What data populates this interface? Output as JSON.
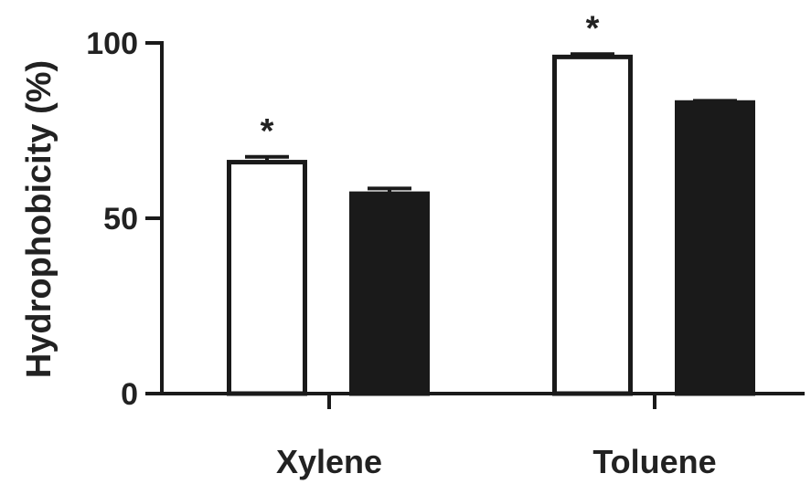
{
  "chart_data": {
    "type": "bar",
    "categories": [
      "Xylene",
      "Toluene"
    ],
    "series": [
      {
        "values": [
          66,
          96
        ],
        "errors": [
          1.5,
          0.8
        ],
        "fill": "#ffffff",
        "stroke": "#1a1a1a"
      },
      {
        "values": [
          57,
          83
        ],
        "errors": [
          1.5,
          0.5
        ],
        "fill": "#1a1a1a",
        "stroke": "#1a1a1a"
      }
    ],
    "significance": [
      {
        "category": 0,
        "series": 0,
        "label": "*"
      },
      {
        "category": 1,
        "series": 0,
        "label": "*"
      }
    ],
    "ylabel": "Hydrophobicity (%)",
    "xlabel": "",
    "title": "",
    "ylim": [
      0,
      100
    ],
    "yticks": [
      0,
      50,
      100
    ],
    "grid": false,
    "legend": "none"
  }
}
